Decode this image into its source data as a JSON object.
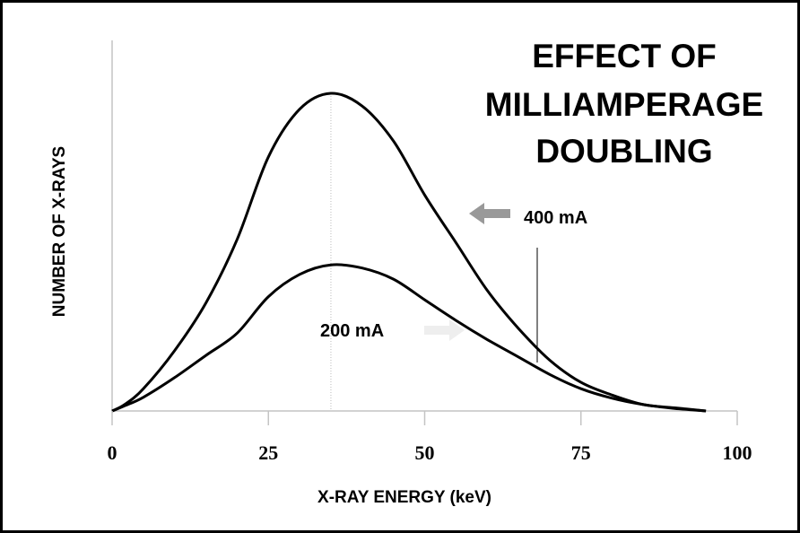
{
  "chart_data": {
    "type": "line",
    "title_lines": [
      "EFFECT OF",
      "MILLIAMPERAGE",
      "DOUBLING"
    ],
    "xlabel": "X-RAY ENERGY (keV)",
    "ylabel": "NUMBER OF X-RAYS",
    "xlim": [
      0,
      100
    ],
    "ylim": [
      0,
      100
    ],
    "x_ticks": [
      "0",
      "25",
      "50",
      "75",
      "100"
    ],
    "x_tick_values": [
      0,
      25,
      50,
      75,
      100
    ],
    "y_tick_labels": false,
    "grid": false,
    "legend": "none",
    "series": [
      {
        "name": "400 mA",
        "x": [
          0,
          2,
          5,
          10,
          15,
          20,
          25,
          30,
          35,
          40,
          45,
          50,
          55,
          60,
          65,
          70,
          75,
          80,
          85,
          90,
          95
        ],
        "y": [
          0,
          2,
          7,
          19,
          34,
          54,
          80,
          95,
          100,
          96,
          85,
          68,
          53,
          38,
          26,
          16,
          9,
          5,
          2,
          1,
          0
        ]
      },
      {
        "name": "200 mA",
        "x": [
          0,
          2,
          5,
          10,
          15,
          20,
          25,
          30,
          35,
          40,
          45,
          50,
          55,
          60,
          65,
          70,
          75,
          80,
          85,
          90,
          95
        ],
        "y": [
          0,
          1.6,
          4.3,
          10.5,
          17.5,
          24.5,
          36,
          43,
          46,
          45,
          41.5,
          35,
          28.5,
          22.5,
          17,
          11.5,
          7,
          4,
          2,
          0.8,
          0
        ]
      }
    ],
    "reference_x": 35,
    "annotations": [
      {
        "text": "400 mA",
        "series": "400 mA",
        "arrow_color": "#999999",
        "arrow_direction": "left"
      },
      {
        "text": "200 mA",
        "series": "200 mA",
        "arrow_color": "#eeeeee",
        "arrow_direction": "right"
      }
    ]
  }
}
